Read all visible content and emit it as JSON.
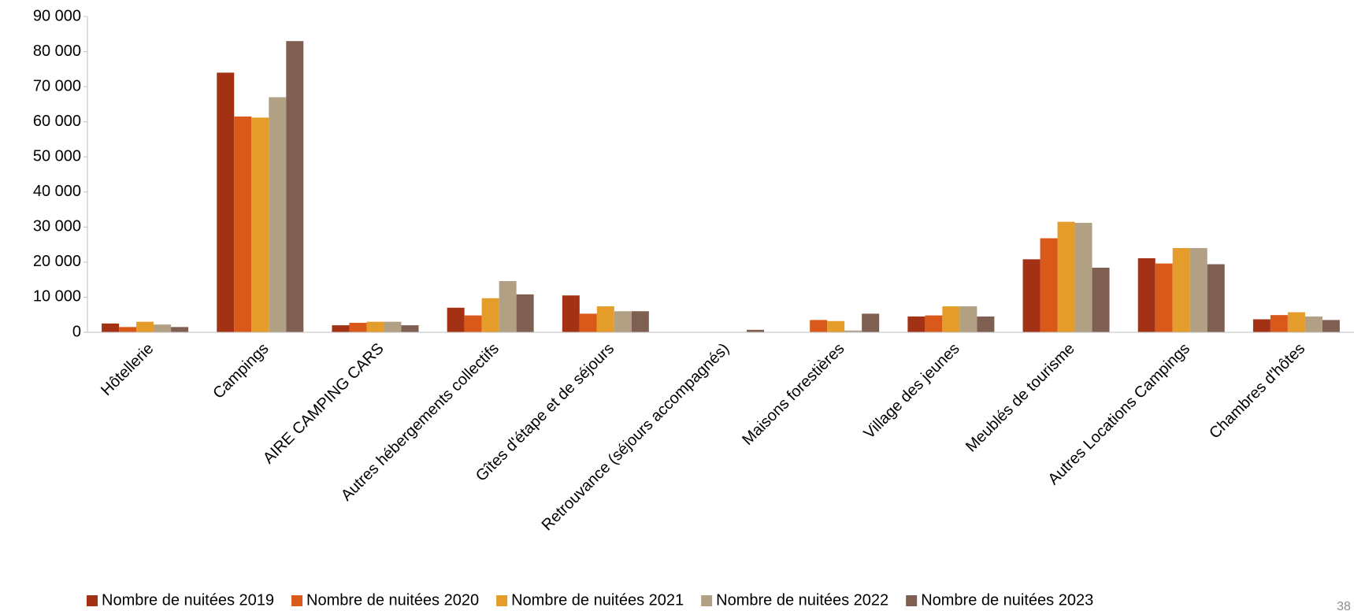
{
  "chart_data": {
    "type": "bar",
    "categories": [
      "Hôtellerie",
      "Campings",
      "AIRE CAMPING CARS",
      "Autres hébergements collectifs",
      "Gîtes d'étape et de séjours",
      "Retrouvance (séjours accompagnés)",
      "Maisons forestières",
      "Village des jeunes",
      "Meublés de tourisme",
      "Autres Locations Campings",
      "Chambres d'hôtes"
    ],
    "series": [
      {
        "name": "Nombre de nuitées 2019",
        "color": "#a33214",
        "values": [
          2500,
          74000,
          2000,
          7000,
          10500,
          0,
          0,
          4500,
          20800,
          21100,
          3700
        ]
      },
      {
        "name": "Nombre de nuitées 2020",
        "color": "#d9591a",
        "values": [
          1500,
          61500,
          2700,
          4800,
          5300,
          0,
          3500,
          4800,
          26800,
          19600,
          4900
        ]
      },
      {
        "name": "Nombre de nuitées 2021",
        "color": "#e49c2a",
        "values": [
          3000,
          61200,
          3000,
          9700,
          7400,
          0,
          3200,
          7400,
          31500,
          24000,
          5700
        ]
      },
      {
        "name": "Nombre de nuitées 2022",
        "color": "#b1a083",
        "values": [
          2200,
          67000,
          3000,
          14600,
          6000,
          0,
          500,
          7400,
          31200,
          24000,
          4500
        ]
      },
      {
        "name": "Nombre de nuitées 2023",
        "color": "#7e5f52",
        "values": [
          1500,
          83000,
          2000,
          10800,
          6000,
          700,
          5300,
          4500,
          18400,
          19400,
          3500
        ]
      }
    ],
    "ylim": [
      0,
      90000
    ],
    "yticks": [
      {
        "value": 0,
        "label": "0"
      },
      {
        "value": 10000,
        "label": "10 000"
      },
      {
        "value": 20000,
        "label": "20 000"
      },
      {
        "value": 30000,
        "label": "30 000"
      },
      {
        "value": 40000,
        "label": "40 000"
      },
      {
        "value": 50000,
        "label": "50 000"
      },
      {
        "value": 60000,
        "label": "60 000"
      },
      {
        "value": 70000,
        "label": "70 000"
      },
      {
        "value": 80000,
        "label": "80 000"
      },
      {
        "value": 90000,
        "label": "90 000"
      }
    ],
    "legend": "bottom",
    "page_number": "38"
  }
}
